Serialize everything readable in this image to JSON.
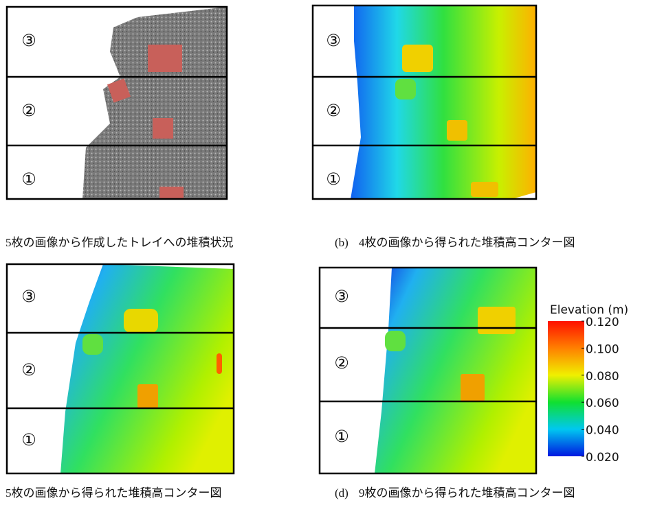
{
  "panels": [
    {
      "caption": "5枚の画像から作成したトレイへの堆積状況",
      "zones": [
        "③",
        "②",
        "①"
      ]
    },
    {
      "label": "(b)",
      "caption": "4枚の画像から得られた堆積高コンター図",
      "zones": [
        "③",
        "②",
        "①"
      ]
    },
    {
      "caption": "5枚の画像から得られた堆積高コンター図",
      "zones": [
        "③",
        "②",
        "①"
      ]
    },
    {
      "label": "(d)",
      "caption": "9枚の画像から得られた堆積高コンター図",
      "zones": [
        "③",
        "②",
        "①"
      ]
    }
  ],
  "colorbar": {
    "title": "Elevation (m)",
    "range": [
      0.02,
      0.12
    ],
    "ticks": [
      {
        "value": 0.12,
        "label": "0.120"
      },
      {
        "value": 0.1,
        "label": "0.100"
      },
      {
        "value": 0.08,
        "label": "0.080"
      },
      {
        "value": 0.06,
        "label": "0.060"
      },
      {
        "value": 0.04,
        "label": "0.040"
      },
      {
        "value": 0.02,
        "label": "0.020"
      }
    ],
    "colors": [
      "#0018e0",
      "#00c8f0",
      "#10e030",
      "#f0f000",
      "#ff8000",
      "#ff1000"
    ]
  }
}
